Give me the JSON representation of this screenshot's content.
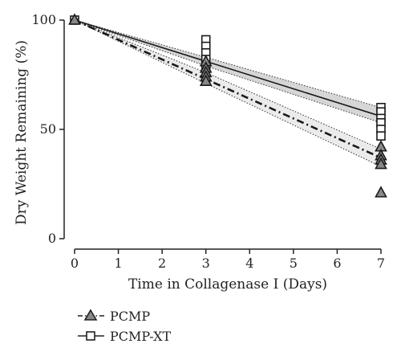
{
  "chart_data": {
    "type": "scatter",
    "xlabel": "Time in Collagenase I (Days)",
    "ylabel": "Dry Weight Remaining (%)",
    "xlim": [
      0,
      7
    ],
    "ylim": [
      0,
      100
    ],
    "xticks": [
      "0",
      "1",
      "2",
      "3",
      "4",
      "5",
      "6",
      "7"
    ],
    "yticks": [
      "0",
      "50",
      "100"
    ],
    "grid": false,
    "legend_position": "bottom-left",
    "series": [
      {
        "name": "PCMP",
        "marker": "triangle",
        "marker_fill": "#888888",
        "line_style": "dash-dot",
        "points": [
          {
            "x": 0,
            "y": 100
          },
          {
            "x": 3,
            "y": 81
          },
          {
            "x": 3,
            "y": 78
          },
          {
            "x": 3,
            "y": 76
          },
          {
            "x": 3,
            "y": 74
          },
          {
            "x": 3,
            "y": 72
          },
          {
            "x": 7,
            "y": 42
          },
          {
            "x": 7,
            "y": 38
          },
          {
            "x": 7,
            "y": 36
          },
          {
            "x": 7,
            "y": 34
          },
          {
            "x": 7,
            "y": 21
          }
        ],
        "fit": {
          "x": [
            0,
            7
          ],
          "y": [
            100,
            37
          ]
        },
        "ci": {
          "x": [
            0,
            3,
            7
          ],
          "lower": [
            100,
            71,
            33
          ],
          "upper": [
            100,
            76,
            41
          ]
        }
      },
      {
        "name": "PCMP-XT",
        "marker": "square",
        "marker_fill": "#ffffff",
        "line_style": "solid",
        "points": [
          {
            "x": 0,
            "y": 100
          },
          {
            "x": 3,
            "y": 91
          },
          {
            "x": 3,
            "y": 88
          },
          {
            "x": 3,
            "y": 85
          },
          {
            "x": 3,
            "y": 82
          },
          {
            "x": 3,
            "y": 79
          },
          {
            "x": 7,
            "y": 60
          },
          {
            "x": 7,
            "y": 58
          },
          {
            "x": 7,
            "y": 55
          },
          {
            "x": 7,
            "y": 53
          },
          {
            "x": 7,
            "y": 50
          },
          {
            "x": 7,
            "y": 47
          }
        ],
        "fit": {
          "x": [
            0,
            7
          ],
          "y": [
            100,
            56
          ]
        },
        "ci": {
          "x": [
            0,
            3,
            7
          ],
          "lower": [
            100,
            79,
            53
          ],
          "upper": [
            100,
            83,
            60
          ]
        }
      }
    ]
  }
}
